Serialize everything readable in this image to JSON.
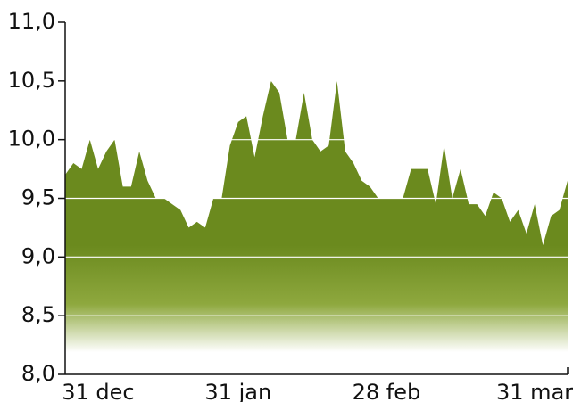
{
  "chart_data": {
    "type": "area",
    "categories": [
      null,
      null,
      null,
      null,
      "31 dec",
      null,
      null,
      null,
      null,
      null,
      null,
      null,
      null,
      null,
      null,
      null,
      null,
      null,
      null,
      null,
      null,
      "31 jan",
      null,
      null,
      null,
      null,
      null,
      null,
      null,
      null,
      null,
      null,
      null,
      null,
      null,
      null,
      null,
      null,
      null,
      "28 feb",
      null,
      null,
      null,
      null,
      null,
      null,
      null,
      null,
      null,
      null,
      null,
      null,
      null,
      null,
      null,
      null,
      null,
      "31 mar",
      null,
      null,
      null,
      null
    ],
    "values": [
      9.7,
      9.8,
      9.75,
      10.0,
      9.75,
      9.9,
      10.0,
      9.6,
      9.6,
      9.9,
      9.65,
      9.5,
      9.5,
      9.45,
      9.4,
      9.25,
      9.3,
      9.25,
      9.5,
      9.5,
      9.95,
      10.15,
      10.2,
      9.85,
      10.2,
      10.5,
      10.4,
      10.0,
      10.0,
      10.4,
      10.0,
      9.9,
      9.95,
      10.5,
      9.9,
      9.8,
      9.65,
      9.6,
      9.5,
      9.5,
      9.5,
      9.5,
      9.75,
      9.75,
      9.75,
      9.45,
      9.95,
      9.5,
      9.75,
      9.45,
      9.45,
      9.35,
      9.55,
      9.5,
      9.3,
      9.4,
      9.2,
      9.45,
      9.1,
      9.35,
      9.4,
      9.65
    ],
    "color": "#6b8a1e",
    "ylim": [
      8.0,
      11.0
    ],
    "yticks": [
      {
        "value": 8.0,
        "label": "8,0"
      },
      {
        "value": 8.5,
        "label": "8,5"
      },
      {
        "value": 9.0,
        "label": "9,0"
      },
      {
        "value": 9.5,
        "label": "9,5"
      },
      {
        "value": 10.0,
        "label": "10,0"
      },
      {
        "value": 10.5,
        "label": "10,5"
      },
      {
        "value": 11.0,
        "label": "11,0"
      }
    ],
    "grid": true
  }
}
